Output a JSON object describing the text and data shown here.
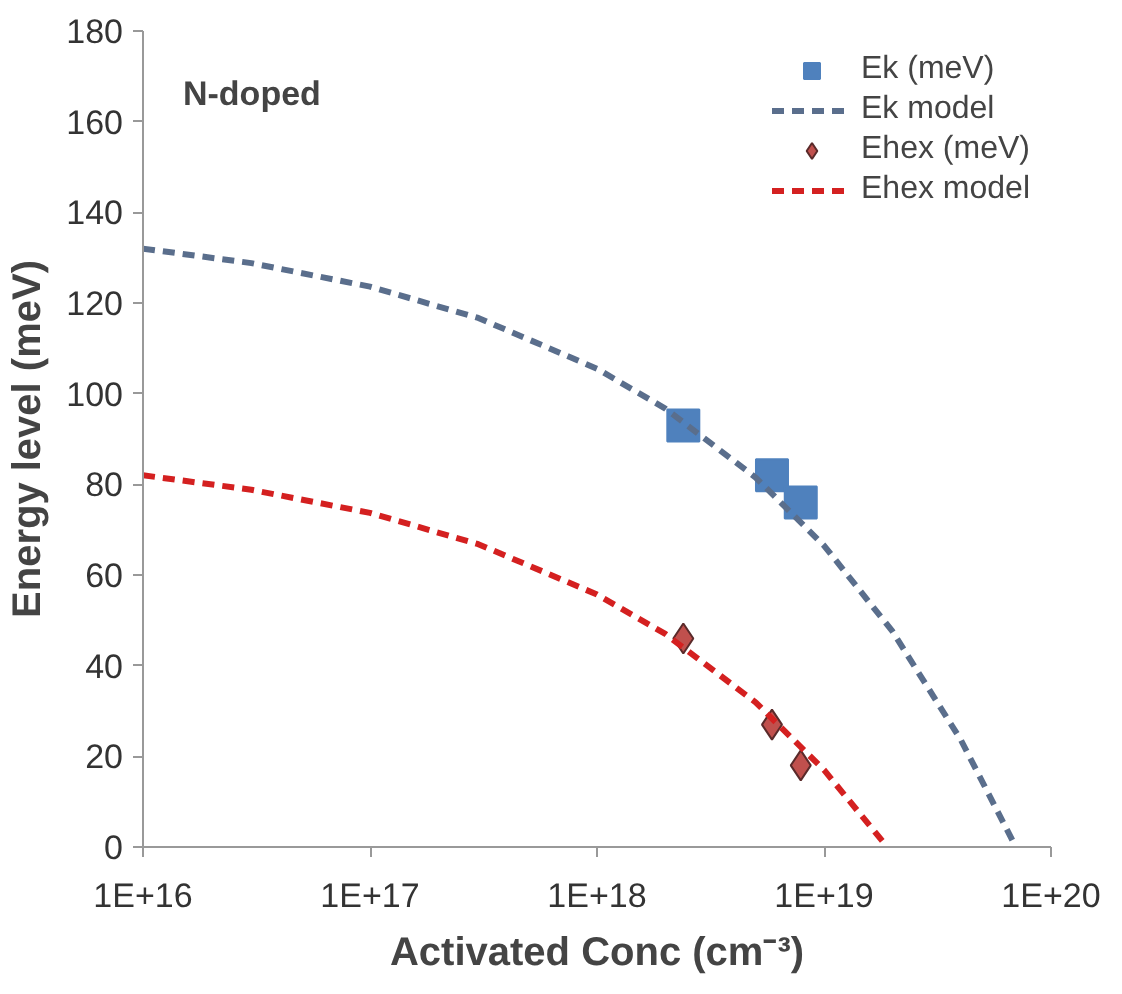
{
  "chart_data": {
    "type": "scatter",
    "xlabel": "Activated Conc (cm⁻³)",
    "ylabel": "Energy level (meV)",
    "log": "x",
    "xlim": [
      1e+16,
      1e+20
    ],
    "xticks": [
      {
        "value": 1e+16,
        "label": "1E+16"
      },
      {
        "value": 1e+17,
        "label": "1E+17"
      },
      {
        "value": 1e+18,
        "label": "1E+18"
      },
      {
        "value": 1e+19,
        "label": "1E+19"
      },
      {
        "value": 1e+20,
        "label": "1E+20"
      }
    ],
    "ylim": [
      0,
      180
    ],
    "yticks": [
      0,
      20,
      40,
      60,
      80,
      100,
      120,
      140,
      160,
      180
    ],
    "grid": false,
    "legend": "top right",
    "annotations": [
      "N-doped"
    ],
    "series": [
      {
        "name": "Ek (meV)",
        "marker": "square",
        "color": "#4f81bd",
        "x": [
          2.4e+18,
          5.9e+18,
          7.9e+18
        ],
        "values": [
          93,
          82,
          76
        ]
      },
      {
        "name": "Ek model",
        "type": "line",
        "line_style": "dashed",
        "color": "#5a6e8c",
        "x": [
          1e+16,
          3e+16,
          1e+17,
          3e+17,
          1e+18,
          2e+18,
          5e+18,
          1e+19,
          2e+19,
          4e+19,
          7e+19
        ],
        "values": [
          132,
          128.8,
          123.6,
          116.7,
          105.5,
          96.7,
          81.5,
          66.5,
          47.6,
          23.7,
          0
        ]
      },
      {
        "name": "Ehex (meV)",
        "marker": "diamond",
        "color": "#c0504d",
        "x": [
          2.4e+18,
          5.9e+18,
          7.9e+18
        ],
        "values": [
          46,
          27,
          18
        ]
      },
      {
        "name": "Ehex model",
        "type": "line",
        "line_style": "dashed",
        "color": "#d42020",
        "x": [
          1e+16,
          3e+16,
          1e+17,
          3e+17,
          1e+18,
          2e+18,
          5e+18,
          1e+19,
          1.9e+19
        ],
        "values": [
          82,
          78.8,
          73.7,
          66.8,
          55.7,
          47,
          31.9,
          17,
          0
        ]
      }
    ]
  }
}
